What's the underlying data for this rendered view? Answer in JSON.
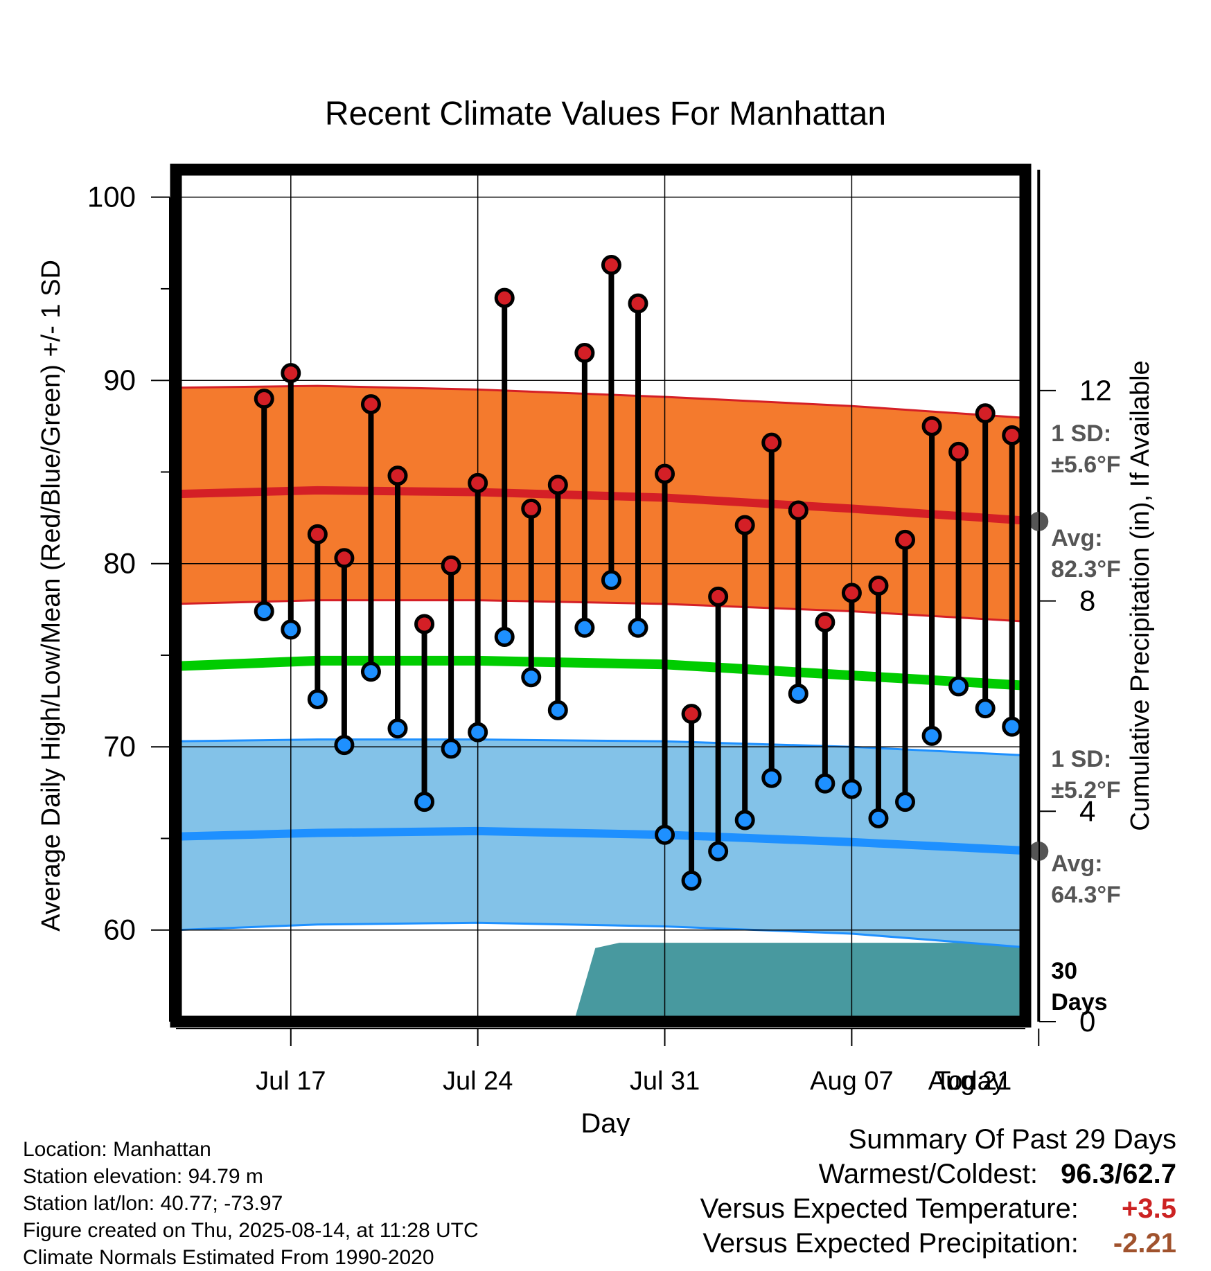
{
  "chart_data": {
    "type": "range-line",
    "title": "Recent Climate Values For Manhattan",
    "xlabel": "Day",
    "ylabel": "Average Daily High/Low/Mean (Red/Blue/Green) +/- 1 SD",
    "y2label": "Cumulative Precipitation (in), If Available",
    "ylim": [
      55,
      101.5
    ],
    "y2lim": [
      0,
      16.2
    ],
    "yticks": [
      "60",
      "70",
      "80",
      "90",
      "100"
    ],
    "y2ticks": [
      "0",
      "4",
      "8",
      "12"
    ],
    "xlim": [
      -4.3,
      27.5
    ],
    "xticks": [
      {
        "x": 0,
        "label": "Jul 17"
      },
      {
        "x": 7,
        "label": "Jul 24"
      },
      {
        "x": 14,
        "label": "Jul 31"
      },
      {
        "x": 21,
        "label": "Aug 07"
      },
      {
        "x": 28,
        "label": "Today"
      },
      {
        "x": 35,
        "label": "Aug 21"
      }
    ],
    "days_x": [
      -1,
      0,
      1,
      2,
      3,
      4,
      5,
      6,
      7,
      8,
      9,
      10,
      11,
      12,
      13,
      14,
      15,
      16,
      17,
      18,
      19,
      20,
      21,
      22,
      23,
      24,
      25,
      26,
      27
    ],
    "highs": [
      89.0,
      90.4,
      81.6,
      80.3,
      88.7,
      84.8,
      76.7,
      79.9,
      84.4,
      94.5,
      83.0,
      84.3,
      91.5,
      96.3,
      94.2,
      84.9,
      71.8,
      78.2,
      82.1,
      86.6,
      82.9,
      76.8,
      78.4,
      78.8,
      81.3,
      87.5,
      86.1,
      88.2,
      87.0
    ],
    "lows": [
      77.4,
      76.4,
      72.6,
      70.1,
      74.1,
      71.0,
      67.0,
      69.9,
      70.8,
      76.0,
      73.8,
      72.0,
      76.5,
      79.1,
      76.5,
      65.2,
      62.7,
      64.3,
      66.0,
      68.3,
      72.9,
      68.0,
      67.7,
      66.1,
      67.0,
      70.6,
      73.3,
      72.1,
      71.1
    ],
    "normals": {
      "x": [
        -4.3,
        1,
        7,
        14,
        21,
        28,
        35,
        41.5
      ],
      "high_avg": [
        83.8,
        84.0,
        83.9,
        83.6,
        83.0,
        82.3,
        81.5,
        80.8
      ],
      "high_upper": [
        89.6,
        89.7,
        89.5,
        89.1,
        88.6,
        87.9,
        87.3,
        86.8
      ],
      "high_lower": [
        77.8,
        78.0,
        78.0,
        77.8,
        77.4,
        76.8,
        76.2,
        75.4
      ],
      "mean": [
        74.4,
        74.7,
        74.7,
        74.5,
        73.9,
        73.3,
        72.6,
        71.8
      ],
      "low_avg": [
        65.1,
        65.3,
        65.4,
        65.2,
        64.8,
        64.3,
        63.7,
        63.0
      ],
      "low_upper": [
        70.3,
        70.4,
        70.4,
        70.3,
        70.0,
        69.5,
        69.1,
        68.5
      ],
      "low_lower": [
        60.0,
        60.3,
        60.4,
        60.2,
        59.8,
        59.0,
        58.5,
        58.3
      ]
    },
    "precipitation": {
      "x": [
        10.6,
        11.4,
        12.3,
        25.5,
        26.4,
        41.5
      ],
      "values": [
        0,
        1.4,
        1.5,
        1.5,
        2.1,
        2.1
      ]
    },
    "today_x": 28,
    "annotations": {
      "high_sd_label": "1 SD:",
      "high_sd_value": "±5.6°F",
      "high_avg_label": "Avg:",
      "high_avg_value": "82.3°F",
      "low_sd_label": "1 SD:",
      "low_sd_value": "±5.2°F",
      "low_avg_label": "Avg:",
      "low_avg_value": "64.3°F",
      "high_avg_today": 82.3,
      "low_avg_today": 64.3,
      "days_line1": "30",
      "days_line2": "Days"
    },
    "colors": {
      "high_band": "#f47a2d",
      "high_line": "#d41f26",
      "low_band": "#83c2e8",
      "low_line": "#1e90ff",
      "mean_line": "#00cc00",
      "precip": "#48999f",
      "high_dot": "#d41f26",
      "low_dot": "#1e90ff",
      "annotation": "#555555"
    },
    "grid": true
  },
  "meta": {
    "location": "Location: Manhattan",
    "elevation": "Station elevation: 94.79 m",
    "latlon": "Station lat/lon: 40.77; -73.97",
    "created": "Figure created on Thu, 2025-08-14, at 11:28 UTC",
    "normals": "Climate Normals Estimated From 1990-2020"
  },
  "summary": {
    "title": "Summary Of Past 29 Days",
    "warm_cold_label": "Warmest/Coldest:",
    "warmest": "96.3",
    "separator": "/",
    "coldest": "62.7",
    "temp_label": "Versus Expected Temperature:",
    "temp_value": "+3.5",
    "temp_color": "#cc2222",
    "precip_label": "Versus Expected Precipitation:",
    "precip_value": "-2.21",
    "precip_color": "#a0522d"
  }
}
